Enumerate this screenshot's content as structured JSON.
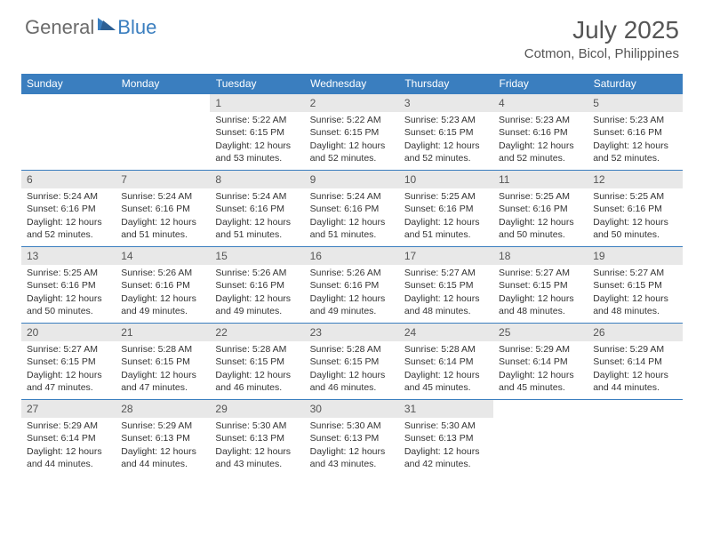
{
  "brand": {
    "part1": "General",
    "part2": "Blue"
  },
  "title": "July 2025",
  "location": "Cotmon, Bicol, Philippines",
  "colors": {
    "header_bg": "#3a7ebf",
    "header_text": "#ffffff",
    "daynum_bg": "#e8e8e8",
    "daynum_border": "#3a7ebf",
    "logo_gray": "#6b6b6b",
    "logo_blue": "#3a7ebf"
  },
  "weekdays": [
    "Sunday",
    "Monday",
    "Tuesday",
    "Wednesday",
    "Thursday",
    "Friday",
    "Saturday"
  ],
  "weeks": [
    [
      null,
      null,
      {
        "n": "1",
        "sr": "5:22 AM",
        "ss": "6:15 PM",
        "dl": "12 hours and 53 minutes."
      },
      {
        "n": "2",
        "sr": "5:22 AM",
        "ss": "6:15 PM",
        "dl": "12 hours and 52 minutes."
      },
      {
        "n": "3",
        "sr": "5:23 AM",
        "ss": "6:15 PM",
        "dl": "12 hours and 52 minutes."
      },
      {
        "n": "4",
        "sr": "5:23 AM",
        "ss": "6:16 PM",
        "dl": "12 hours and 52 minutes."
      },
      {
        "n": "5",
        "sr": "5:23 AM",
        "ss": "6:16 PM",
        "dl": "12 hours and 52 minutes."
      }
    ],
    [
      {
        "n": "6",
        "sr": "5:24 AM",
        "ss": "6:16 PM",
        "dl": "12 hours and 52 minutes."
      },
      {
        "n": "7",
        "sr": "5:24 AM",
        "ss": "6:16 PM",
        "dl": "12 hours and 51 minutes."
      },
      {
        "n": "8",
        "sr": "5:24 AM",
        "ss": "6:16 PM",
        "dl": "12 hours and 51 minutes."
      },
      {
        "n": "9",
        "sr": "5:24 AM",
        "ss": "6:16 PM",
        "dl": "12 hours and 51 minutes."
      },
      {
        "n": "10",
        "sr": "5:25 AM",
        "ss": "6:16 PM",
        "dl": "12 hours and 51 minutes."
      },
      {
        "n": "11",
        "sr": "5:25 AM",
        "ss": "6:16 PM",
        "dl": "12 hours and 50 minutes."
      },
      {
        "n": "12",
        "sr": "5:25 AM",
        "ss": "6:16 PM",
        "dl": "12 hours and 50 minutes."
      }
    ],
    [
      {
        "n": "13",
        "sr": "5:25 AM",
        "ss": "6:16 PM",
        "dl": "12 hours and 50 minutes."
      },
      {
        "n": "14",
        "sr": "5:26 AM",
        "ss": "6:16 PM",
        "dl": "12 hours and 49 minutes."
      },
      {
        "n": "15",
        "sr": "5:26 AM",
        "ss": "6:16 PM",
        "dl": "12 hours and 49 minutes."
      },
      {
        "n": "16",
        "sr": "5:26 AM",
        "ss": "6:16 PM",
        "dl": "12 hours and 49 minutes."
      },
      {
        "n": "17",
        "sr": "5:27 AM",
        "ss": "6:15 PM",
        "dl": "12 hours and 48 minutes."
      },
      {
        "n": "18",
        "sr": "5:27 AM",
        "ss": "6:15 PM",
        "dl": "12 hours and 48 minutes."
      },
      {
        "n": "19",
        "sr": "5:27 AM",
        "ss": "6:15 PM",
        "dl": "12 hours and 48 minutes."
      }
    ],
    [
      {
        "n": "20",
        "sr": "5:27 AM",
        "ss": "6:15 PM",
        "dl": "12 hours and 47 minutes."
      },
      {
        "n": "21",
        "sr": "5:28 AM",
        "ss": "6:15 PM",
        "dl": "12 hours and 47 minutes."
      },
      {
        "n": "22",
        "sr": "5:28 AM",
        "ss": "6:15 PM",
        "dl": "12 hours and 46 minutes."
      },
      {
        "n": "23",
        "sr": "5:28 AM",
        "ss": "6:15 PM",
        "dl": "12 hours and 46 minutes."
      },
      {
        "n": "24",
        "sr": "5:28 AM",
        "ss": "6:14 PM",
        "dl": "12 hours and 45 minutes."
      },
      {
        "n": "25",
        "sr": "5:29 AM",
        "ss": "6:14 PM",
        "dl": "12 hours and 45 minutes."
      },
      {
        "n": "26",
        "sr": "5:29 AM",
        "ss": "6:14 PM",
        "dl": "12 hours and 44 minutes."
      }
    ],
    [
      {
        "n": "27",
        "sr": "5:29 AM",
        "ss": "6:14 PM",
        "dl": "12 hours and 44 minutes."
      },
      {
        "n": "28",
        "sr": "5:29 AM",
        "ss": "6:13 PM",
        "dl": "12 hours and 44 minutes."
      },
      {
        "n": "29",
        "sr": "5:30 AM",
        "ss": "6:13 PM",
        "dl": "12 hours and 43 minutes."
      },
      {
        "n": "30",
        "sr": "5:30 AM",
        "ss": "6:13 PM",
        "dl": "12 hours and 43 minutes."
      },
      {
        "n": "31",
        "sr": "5:30 AM",
        "ss": "6:13 PM",
        "dl": "12 hours and 42 minutes."
      },
      null,
      null
    ]
  ],
  "labels": {
    "sunrise": "Sunrise:",
    "sunset": "Sunset:",
    "daylight": "Daylight:"
  }
}
